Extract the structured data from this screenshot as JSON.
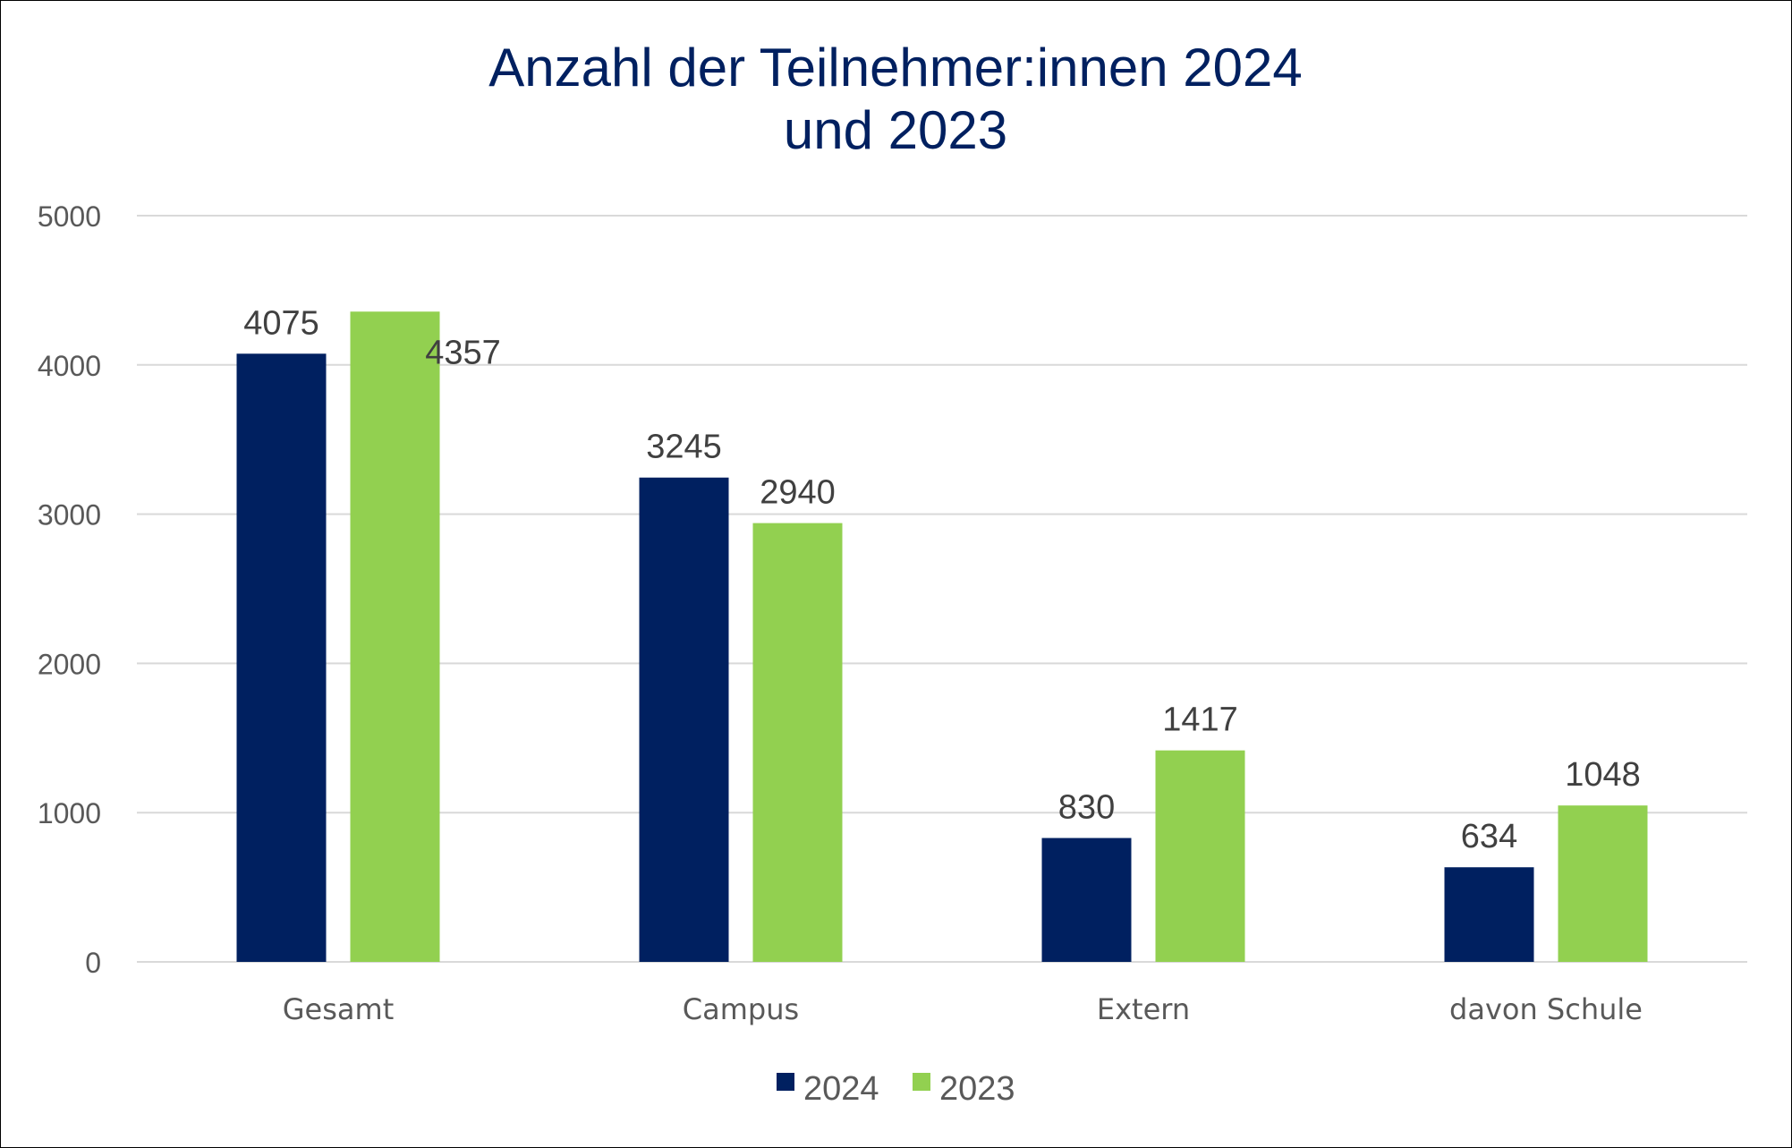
{
  "chart_data": {
    "type": "bar",
    "title_lines": [
      "Anzahl der Teilnehmer:innen 2024",
      "und 2023"
    ],
    "categories": [
      "Gesamt",
      "Campus",
      "Extern",
      "davon Schule"
    ],
    "series": [
      {
        "name": "2024",
        "values": [
          4075,
          3245,
          830,
          634
        ],
        "color": "#002060"
      },
      {
        "name": "2023",
        "values": [
          4357,
          2940,
          1417,
          1048
        ],
        "color": "#92d050"
      }
    ],
    "ylim": [
      0,
      5000
    ],
    "yticks": [
      0,
      1000,
      2000,
      3000,
      4000,
      5000
    ],
    "grid": true,
    "legend_position": "bottom",
    "data_labels": true
  }
}
